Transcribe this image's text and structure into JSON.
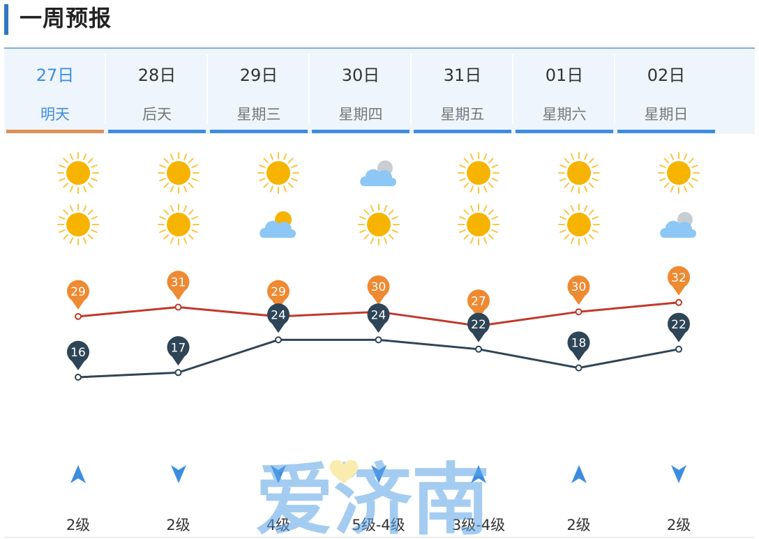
{
  "header": {
    "title": "一周预报"
  },
  "days": [
    {
      "date": "27日",
      "label": "明天",
      "day_icon": "sun-icon",
      "night_icon": "sun-icon",
      "high": 29,
      "low": 16,
      "wind_dir": "up",
      "wind_level": "2级",
      "active": true
    },
    {
      "date": "28日",
      "label": "后天",
      "day_icon": "sun-icon",
      "night_icon": "sun-icon",
      "high": 31,
      "low": 17,
      "wind_dir": "down",
      "wind_level": "2级",
      "active": false
    },
    {
      "date": "29日",
      "label": "星期三",
      "day_icon": "sun-icon",
      "night_icon": "partly-cloudy-icon",
      "high": 29,
      "low": 24,
      "wind_dir": "down",
      "wind_level": "4级",
      "active": false
    },
    {
      "date": "30日",
      "label": "星期四",
      "day_icon": "cloudy-icon",
      "night_icon": "sun-icon",
      "high": 30,
      "low": 24,
      "wind_dir": "down",
      "wind_level": "5级-4级",
      "active": false
    },
    {
      "date": "31日",
      "label": "星期五",
      "day_icon": "sun-icon",
      "night_icon": "sun-icon",
      "high": 27,
      "low": 22,
      "wind_dir": "up",
      "wind_level": "3级-4级",
      "active": false
    },
    {
      "date": "01日",
      "label": "星期六",
      "day_icon": "sun-icon",
      "night_icon": "sun-icon",
      "high": 30,
      "low": 18,
      "wind_dir": "up",
      "wind_level": "2级",
      "active": false
    },
    {
      "date": "02日",
      "label": "星期日",
      "day_icon": "sun-icon",
      "night_icon": "cloudy-icon",
      "high": 32,
      "low": 22,
      "wind_dir": "down",
      "wind_level": "2级",
      "active": false
    }
  ],
  "chart_data": {
    "type": "line",
    "categories": [
      "27日",
      "28日",
      "29日",
      "30日",
      "31日",
      "01日",
      "02日"
    ],
    "series": [
      {
        "values": [
          29,
          31,
          29,
          30,
          27,
          30,
          32
        ],
        "color": "#c0392b",
        "marker_color": "#ee8a32"
      },
      {
        "values": [
          16,
          17,
          24,
          24,
          22,
          18,
          22
        ],
        "color": "#2e4557",
        "marker_color": "#2e4557"
      }
    ]
  },
  "watermark": {
    "text": "爱济南"
  },
  "colors": {
    "accent": "#3c8de0",
    "active_underline": "#e08f55",
    "sun": "#f6b400",
    "cloud": "#8cc7f5"
  }
}
